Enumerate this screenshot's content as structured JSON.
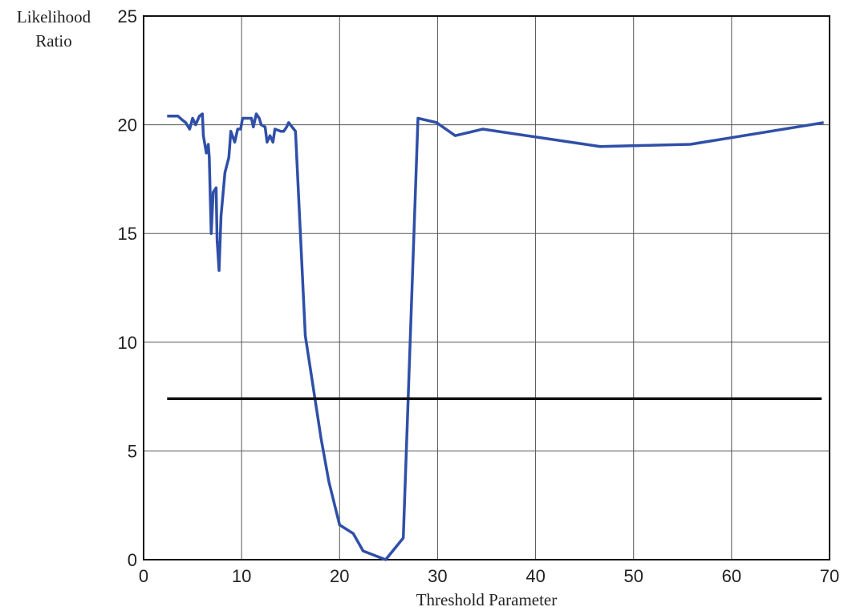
{
  "chart_data": {
    "type": "line",
    "x_label": "Threshold Parameter",
    "y_label": "Likelihood Ratio",
    "xlim": [
      0,
      70
    ],
    "xticks": [
      0,
      10,
      20,
      30,
      40,
      50,
      60,
      70
    ],
    "ylim": [
      0,
      25
    ],
    "yticks": [
      0,
      5,
      10,
      15,
      20,
      25
    ],
    "grid": true,
    "series": [
      {
        "color": "#2f4fa8",
        "x": [
          2.4,
          3.5,
          4.0,
          4.3,
          4.7,
          5.0,
          5.3,
          5.7,
          6.0,
          6.1,
          6.4,
          6.6,
          6.7,
          6.9,
          7.1,
          7.4,
          7.5,
          7.7,
          7.9,
          8.3,
          8.7,
          8.9,
          9.3,
          9.6,
          9.9,
          10.1,
          10.4,
          11.0,
          11.2,
          11.5,
          11.8,
          12.0,
          12.4,
          12.6,
          12.9,
          13.2,
          13.4,
          14.0,
          14.3,
          14.6,
          14.8,
          15.5,
          16.5,
          18.1,
          18.9,
          20.0,
          21.4,
          22.4,
          24.7,
          26.5,
          28.0,
          29.9,
          31.8,
          34.6,
          46.6,
          55.8,
          69.4
        ],
        "values": [
          20.4,
          20.4,
          20.2,
          20.1,
          19.8,
          20.3,
          20.0,
          20.4,
          20.5,
          19.5,
          18.7,
          19.1,
          18.5,
          15.0,
          16.9,
          17.1,
          14.7,
          13.3,
          15.8,
          17.8,
          18.5,
          19.7,
          19.2,
          19.8,
          19.8,
          20.3,
          20.3,
          20.3,
          19.9,
          20.5,
          20.3,
          20.0,
          19.9,
          19.2,
          19.5,
          19.2,
          19.8,
          19.7,
          19.7,
          19.9,
          20.1,
          19.7,
          10.3,
          5.6,
          3.6,
          1.6,
          1.2,
          0.4,
          0.0,
          1.0,
          20.3,
          20.1,
          19.5,
          19.8,
          19.0,
          19.1,
          20.1
        ]
      },
      {
        "color": "#111111",
        "x": [
          2.4,
          69.2
        ],
        "values": [
          7.4,
          7.4
        ]
      }
    ]
  }
}
